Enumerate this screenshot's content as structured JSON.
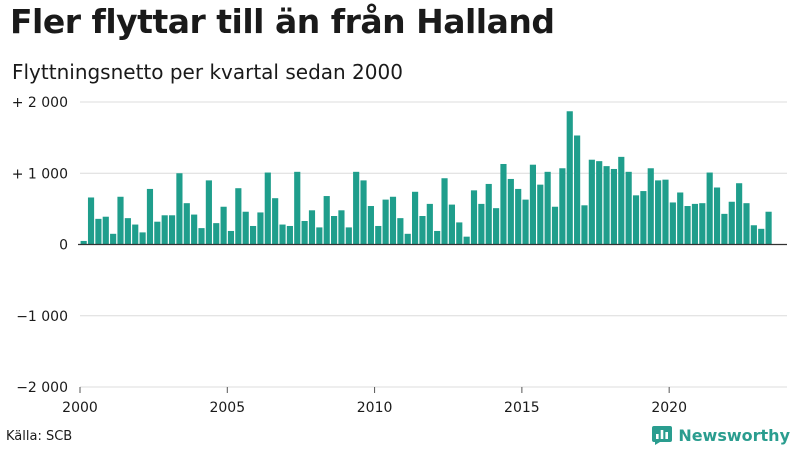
{
  "title": "Fler flyttar till än från Halland",
  "subtitle": "Flyttningsnetto per kvartal sedan 2000",
  "source": "Källa: SCB",
  "brand": {
    "name": "Newsworthy",
    "icon": "bar-chart-logo-icon"
  },
  "colors": {
    "bar": "#1f9e8c",
    "grid": "#dcdcdc",
    "zero_line": "#333333",
    "brand": "#2a9d8f"
  },
  "chart_data": {
    "type": "bar",
    "title": "Fler flyttar till än från Halland",
    "subtitle": "Flyttningsnetto per kvartal sedan 2000",
    "xlabel": "",
    "ylabel": "",
    "ylim": [
      -2000,
      2000
    ],
    "xlim": [
      "2000-Q1",
      "2023-Q4"
    ],
    "grid": true,
    "legend": "none",
    "y_ticks": [
      {
        "value": 2000,
        "label": "+ 2 000"
      },
      {
        "value": 1000,
        "label": "+ 1 000"
      },
      {
        "value": 0,
        "label": "0"
      },
      {
        "value": -1000,
        "label": "−1 000"
      },
      {
        "value": -2000,
        "label": "−2 000"
      }
    ],
    "x_ticks": [
      {
        "year": 2000,
        "label": "2000"
      },
      {
        "year": 2005,
        "label": "2005"
      },
      {
        "year": 2010,
        "label": "2010"
      },
      {
        "year": 2015,
        "label": "2015"
      },
      {
        "year": 2020,
        "label": "2020"
      }
    ],
    "start_year": 2000,
    "values": [
      50,
      660,
      360,
      390,
      150,
      670,
      370,
      280,
      170,
      780,
      320,
      410,
      410,
      1000,
      580,
      420,
      230,
      900,
      300,
      530,
      190,
      790,
      460,
      260,
      450,
      1010,
      650,
      280,
      260,
      1020,
      330,
      480,
      240,
      680,
      400,
      480,
      240,
      1020,
      900,
      540,
      260,
      630,
      670,
      370,
      150,
      740,
      400,
      570,
      190,
      930,
      560,
      310,
      110,
      760,
      570,
      850,
      510,
      1130,
      920,
      780,
      630,
      1120,
      840,
      1020,
      530,
      1070,
      1870,
      1530,
      550,
      1190,
      1170,
      1100,
      1060,
      1230,
      1020,
      690,
      750,
      1070,
      900,
      910,
      590,
      730,
      540,
      570,
      580,
      1010,
      800,
      430,
      600,
      860,
      580,
      270,
      220,
      460
    ]
  }
}
